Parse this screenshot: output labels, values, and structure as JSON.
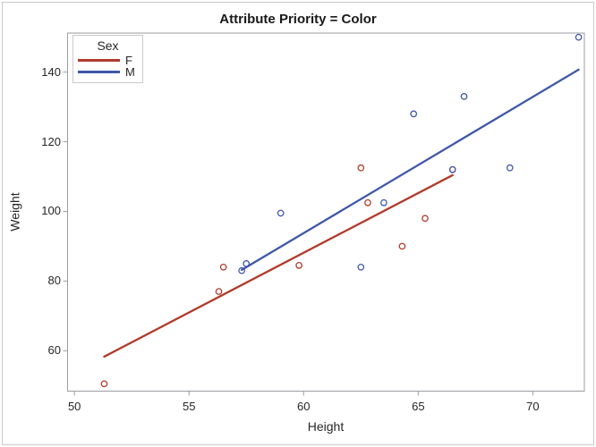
{
  "title": "Attribute Priority = Color",
  "colors": {
    "f_series": "#B13B2B",
    "m_series": "#3F58A8",
    "frame_border": "#9a9ea1",
    "outer_border": "#c7cacb",
    "tick": "#9a9ea1",
    "text": "#262626",
    "background": "#ffffff"
  },
  "chart_data": {
    "type": "scatter",
    "title": "Attribute Priority = Color",
    "xlabel": "Height",
    "ylabel": "Weight",
    "xlim": [
      49.7,
      72.25
    ],
    "ylim": [
      48.4,
      151.2
    ],
    "x_ticks": [
      50,
      55,
      60,
      65,
      70
    ],
    "y_ticks": [
      60,
      80,
      100,
      120,
      140
    ],
    "grid": false,
    "legend": {
      "title": "Sex",
      "position": "inside-top-left",
      "entries": [
        {
          "label": "F",
          "color": "#B13B2B"
        },
        {
          "label": "M",
          "color": "#3F58A8"
        }
      ]
    },
    "series": [
      {
        "name": "F",
        "color": "#B13B2B",
        "marker": "open-circle",
        "points": [
          [
            51.3,
            50.5
          ],
          [
            56.3,
            77.0
          ],
          [
            56.5,
            84.0
          ],
          [
            59.8,
            84.5
          ],
          [
            62.5,
            112.5
          ],
          [
            62.8,
            102.5
          ],
          [
            64.3,
            90.0
          ],
          [
            65.3,
            98.0
          ],
          [
            66.5,
            112.0
          ]
        ],
        "regression_line": {
          "x1": 51.3,
          "y1": 58.3,
          "x2": 66.5,
          "y2": 110.4
        }
      },
      {
        "name": "M",
        "color": "#3F58A8",
        "marker": "open-circle",
        "points": [
          [
            57.3,
            83.0
          ],
          [
            57.5,
            85.0
          ],
          [
            59.0,
            99.5
          ],
          [
            62.5,
            84.0
          ],
          [
            63.5,
            102.5
          ],
          [
            64.8,
            128.0
          ],
          [
            66.5,
            112.0
          ],
          [
            67.0,
            133.0
          ],
          [
            69.0,
            112.5
          ],
          [
            72.0,
            150.0
          ]
        ],
        "regression_line": {
          "x1": 57.3,
          "y1": 83.2,
          "x2": 72.0,
          "y2": 140.7
        }
      }
    ]
  }
}
